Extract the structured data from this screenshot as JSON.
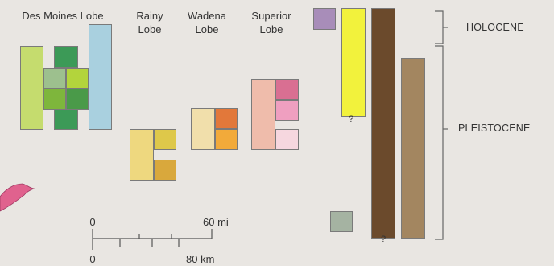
{
  "lobes": {
    "des_moines": "Des Moines Lobe",
    "rainy": "Rainy\nLobe",
    "wadena": "Wadena\nLobe",
    "superior": "Superior\nLobe"
  },
  "epochs": {
    "holocene": "HOLOCENE",
    "pleistocene": "PLEISTOCENE"
  },
  "uncertain_mark": "?",
  "scale_bar": {
    "zero_top": "0",
    "top_value": "60 mi",
    "zero_bottom": "0",
    "bottom_value": "80 km"
  },
  "colors": {
    "des_moines_light": "#c5dc6e",
    "des_moines_blue": "#a9d0df",
    "green_dark": "#3c9a57",
    "green_mid": "#4a9a49",
    "green_light": "#9dc08e",
    "yellow_green": "#b3d43c",
    "olive_green": "#7eb63c",
    "rainy_light": "#eed87f",
    "rainy_dark": "#d9a83c",
    "rainy_mid": "#dec84a",
    "wadena_light": "#f1dfab",
    "wadena_orange": "#e2783a",
    "wadena_amber": "#f2aa3a",
    "superior_pink": "#efbcab",
    "superior_rose": "#d96f92",
    "superior_pink2": "#ef9fc0",
    "superior_pale": "#f6d7df",
    "holocene_purple": "#a88db9",
    "yellow_unit": "#f2f23c",
    "brown_dark": "#6b4a2c",
    "brown_light": "#a38660",
    "grey_unit": "#a5b3a2",
    "bracket": "#666666",
    "lake_pink": "#e0628e"
  }
}
